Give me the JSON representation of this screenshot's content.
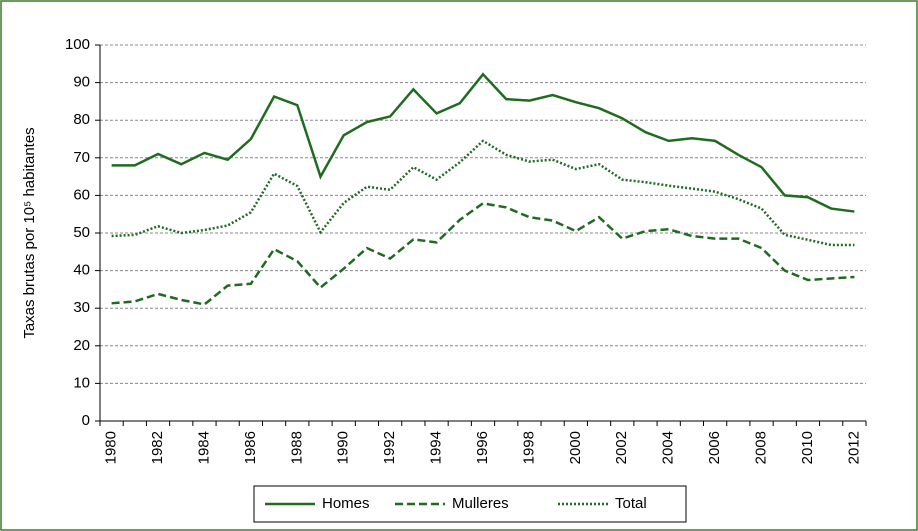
{
  "chart_data": {
    "type": "line",
    "y_label": "Taxas brutas por 10⁵ habitantes",
    "categories": [
      "1980",
      null,
      "1982",
      null,
      "1984",
      null,
      "1986",
      null,
      "1988",
      null,
      "1990",
      null,
      "1992",
      null,
      "1994",
      null,
      "1996",
      null,
      "1998",
      null,
      "2000",
      null,
      "2002",
      null,
      "2004",
      null,
      "2006",
      null,
      "2008",
      null,
      "2010",
      null,
      "2012"
    ],
    "series": [
      {
        "name": "Homes",
        "color": "#1f6b1f",
        "dash": "solid",
        "values": [
          68,
          68,
          71,
          68.3,
          71.3,
          69.5,
          75,
          86.3,
          84,
          65,
          76,
          79.5,
          81,
          88.2,
          81.8,
          84.5,
          92.2,
          85.6,
          85.2,
          86.7,
          84.8,
          83.2,
          80.5,
          76.8,
          74.5,
          75.2,
          74.5,
          70.8,
          67.5,
          60,
          59.5,
          56.5,
          55.7
        ]
      },
      {
        "name": "Mulleres",
        "color": "#1f6b1f",
        "dash": "dashed",
        "values": [
          31.3,
          31.8,
          33.8,
          32.2,
          31,
          36,
          36.5,
          45.7,
          42.5,
          35.5,
          40.5,
          46,
          43.2,
          48.3,
          47.5,
          53.5,
          57.9,
          56.8,
          54.2,
          53.3,
          50.5,
          54.2,
          48.5,
          50.5,
          51,
          49.2,
          48.5,
          48.5,
          46,
          40,
          37.5,
          37.9,
          38.3
        ]
      },
      {
        "name": "Total",
        "color": "#1f6b1f",
        "dash": "dotted",
        "values": [
          49.2,
          49.5,
          51.8,
          50,
          50.8,
          52,
          55.5,
          65.8,
          62.5,
          50.2,
          58,
          62.3,
          61.5,
          67.5,
          64.2,
          68.8,
          74.5,
          70.8,
          69,
          69.5,
          67,
          68.3,
          64.2,
          63.5,
          62.6,
          61.8,
          61,
          59,
          56.5,
          49.5,
          48.2,
          46.8,
          46.8
        ]
      }
    ],
    "ylim": [
      0,
      100
    ],
    "yticks": [
      0,
      10,
      20,
      30,
      40,
      50,
      60,
      70,
      80,
      90,
      100
    ],
    "grid": true,
    "legend": "bottom"
  }
}
